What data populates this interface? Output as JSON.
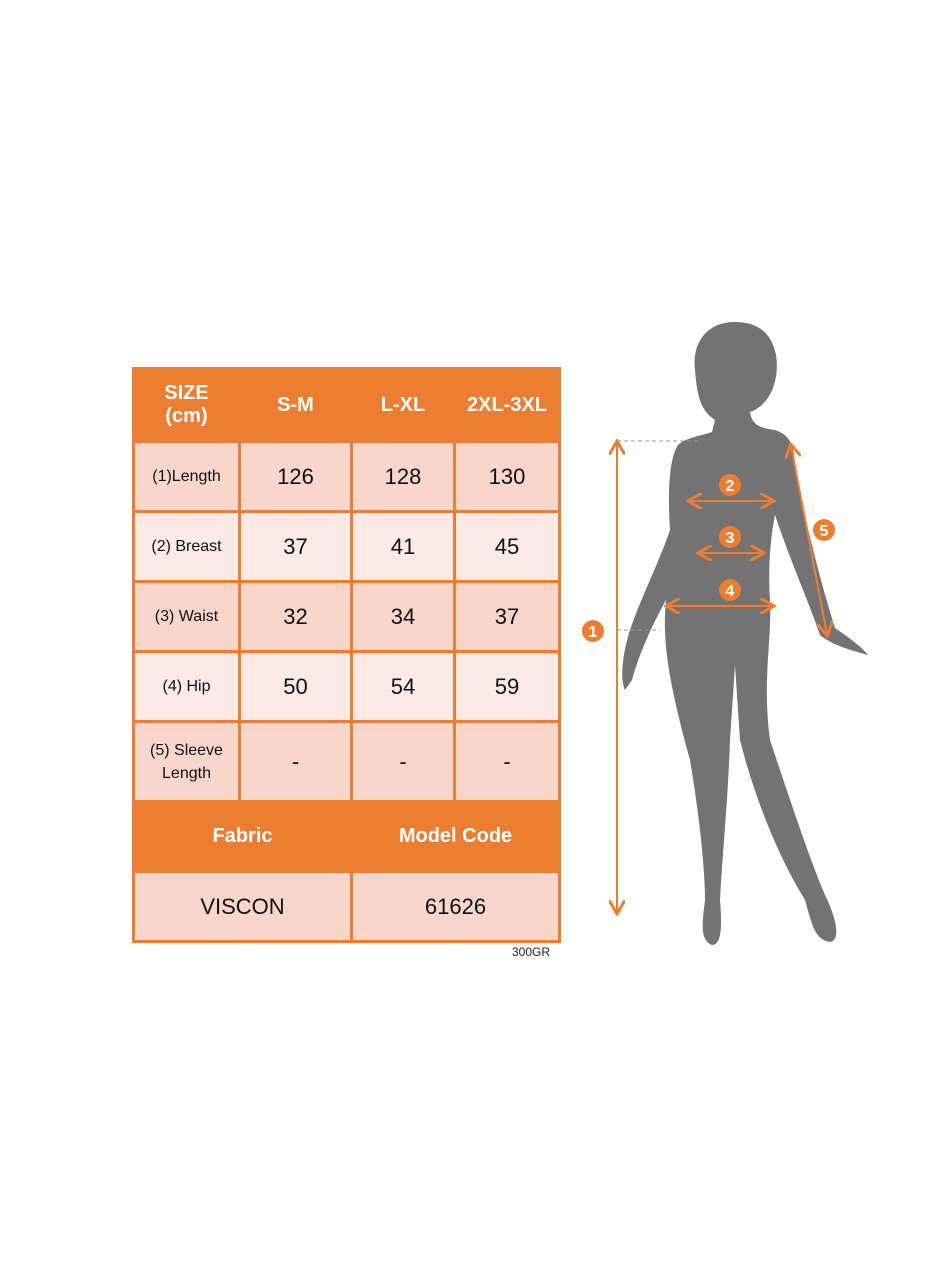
{
  "table": {
    "header": {
      "size_label": "SIZE",
      "unit_label": "(cm)",
      "sizes": [
        "S-M",
        "L-XL",
        "2XL-3XL"
      ]
    },
    "rows": [
      {
        "label": "(1)Length",
        "values": [
          "126",
          "128",
          "130"
        ]
      },
      {
        "label": "(2) Breast",
        "values": [
          "37",
          "41",
          "45"
        ]
      },
      {
        "label": "(3) Waist",
        "values": [
          "32",
          "34",
          "37"
        ]
      },
      {
        "label": "(4) Hip",
        "values": [
          "50",
          "54",
          "59"
        ]
      },
      {
        "label_line1": "(5) Sleeve",
        "label_line2": "Length",
        "values": [
          "-",
          "-",
          "-"
        ]
      }
    ],
    "footer": {
      "fabric_label": "Fabric",
      "model_code_label": "Model Code",
      "fabric": "VISCON",
      "model_code": "61626"
    }
  },
  "note": "300GR",
  "figure": {
    "markers": [
      "1",
      "2",
      "3",
      "4",
      "5"
    ]
  },
  "colors": {
    "accent": "#ED7D31",
    "row_dark": "#F8D6CC",
    "row_light": "#FBEAE5",
    "silhouette": "#737373"
  }
}
